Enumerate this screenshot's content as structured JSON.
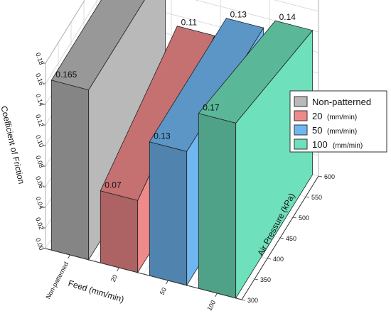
{
  "chart_data": {
    "type": "bar",
    "subtype": "3d-bar-wall",
    "xlabel": "Feed (mm/min)",
    "ylabel": "Coefficient of Friction",
    "zlabel": "Air Pressure (kPa)",
    "x_categories": [
      "Non-patterned",
      "20",
      "50",
      "100"
    ],
    "y_ticks": [
      "0.00",
      "0.02",
      "0.04",
      "0.06",
      "0.08",
      "0.10",
      "0.12",
      "0.14",
      "0.16",
      "0.18"
    ],
    "ylim": [
      0,
      0.18
    ],
    "z_ticks": [
      "300",
      "350",
      "400",
      "450",
      "500",
      "550",
      "600"
    ],
    "zlim": [
      300,
      600
    ],
    "grid": true,
    "legend_position": "right",
    "series": [
      {
        "name": "Non-patterned",
        "unit": "",
        "color": "#b9b9b9",
        "front_value": 0.165,
        "back_value": 0.165,
        "front_label": "0.165",
        "back_label": "None"
      },
      {
        "name": "20",
        "unit": "(mm/min)",
        "color": "#f08a8a",
        "front_value": 0.07,
        "back_value": 0.11,
        "front_label": "0.07",
        "back_label": "0.11"
      },
      {
        "name": "50",
        "unit": "(mm/min)",
        "color": "#6fb7f2",
        "front_value": 0.13,
        "back_value": 0.13,
        "front_label": "0.13",
        "back_label": "0.13"
      },
      {
        "name": "100",
        "unit": "(mm/min)",
        "color": "#6ee0bb",
        "front_value": 0.17,
        "back_value": 0.14,
        "front_label": "0.17",
        "back_label": "0.14"
      }
    ]
  }
}
